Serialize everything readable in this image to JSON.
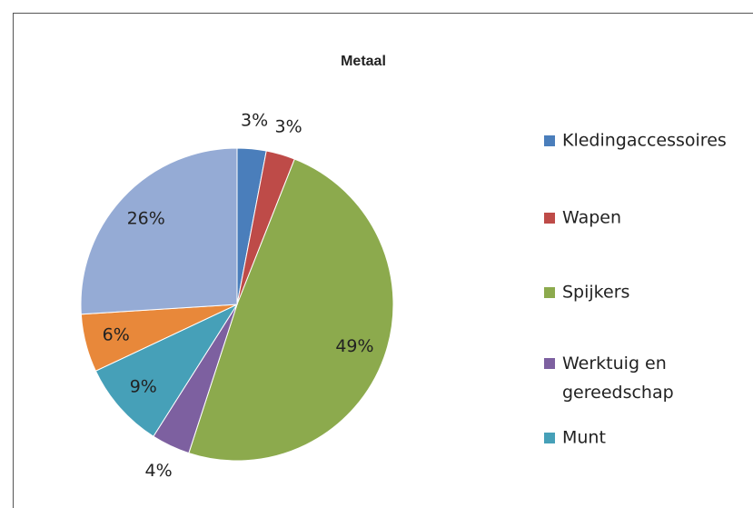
{
  "chart_data": {
    "type": "pie",
    "title": "Metaal",
    "categories": [
      "Kledingaccessoires",
      "Wapen",
      "Spijkers",
      "Werktuig en gereedschap",
      "Munt",
      null,
      null
    ],
    "values": [
      3,
      3,
      49,
      4,
      9,
      6,
      26
    ],
    "value_labels": [
      "3%",
      "3%",
      "49%",
      "4%",
      "9%",
      "6%",
      "26%"
    ],
    "colors": [
      "#4a7ebb",
      "#be4b48",
      "#8caa4d",
      "#7d60a0",
      "#46a0b8",
      "#e8883a",
      "#95abd5"
    ]
  }
}
